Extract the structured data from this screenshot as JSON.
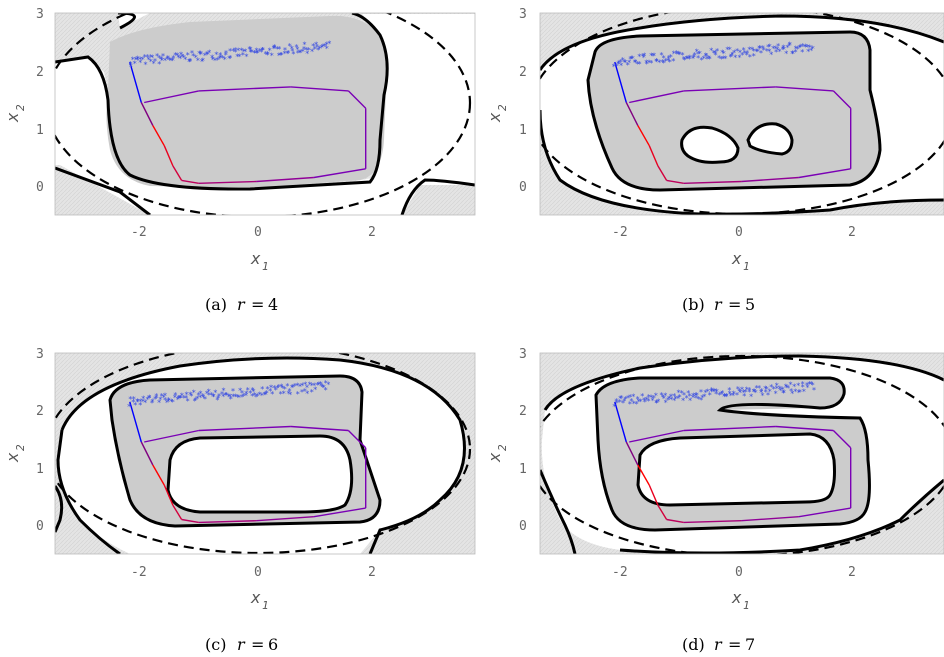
{
  "chart_data": [
    {
      "type": "contour",
      "caption_label": "(a)",
      "caption_var": "r",
      "caption_value": "4",
      "xlabel": "x",
      "xlabel_sub": "1",
      "ylabel": "x",
      "ylabel_sub": "2",
      "xlim": [
        -3.5,
        3.8
      ],
      "ylim": [
        -0.5,
        3
      ],
      "x_ticks": [
        "-2",
        "0",
        "2"
      ],
      "y_ticks": [
        "0",
        "1",
        "2",
        "3"
      ],
      "inner_curves": [],
      "inner_kind": "none"
    },
    {
      "type": "contour",
      "caption_label": "(b)",
      "caption_var": "r",
      "caption_value": "5",
      "xlabel": "x",
      "xlabel_sub": "1",
      "ylabel": "x",
      "ylabel_sub": "2",
      "xlim": [
        -3.5,
        3.8
      ],
      "ylim": [
        -0.5,
        3
      ],
      "x_ticks": [
        "-2",
        "0",
        "2"
      ],
      "y_ticks": [
        "0",
        "1",
        "2",
        "3"
      ],
      "inner_kind": "two-lobes"
    },
    {
      "type": "contour",
      "caption_label": "(c)",
      "caption_var": "r",
      "caption_value": "6",
      "xlabel": "x",
      "xlabel_sub": "1",
      "ylabel": "x",
      "ylabel_sub": "2",
      "xlim": [
        -3.5,
        3.8
      ],
      "ylim": [
        -0.5,
        3
      ],
      "x_ticks": [
        "-2",
        "0",
        "2"
      ],
      "y_ticks": [
        "0",
        "1",
        "2",
        "3"
      ],
      "inner_kind": "hole"
    },
    {
      "type": "contour",
      "caption_label": "(d)",
      "caption_var": "r",
      "caption_value": "7",
      "xlabel": "x",
      "xlabel_sub": "1",
      "ylabel": "x",
      "ylabel_sub": "2",
      "xlim": [
        -3.5,
        3.8
      ],
      "ylim": [
        -0.5,
        3
      ],
      "x_ticks": [
        "-2",
        "0",
        "2"
      ],
      "y_ticks": [
        "0",
        "1",
        "2",
        "3"
      ],
      "inner_kind": "hole"
    }
  ],
  "trajectory": {
    "scatter_band": {
      "x_from": -2.2,
      "x_to": 1.25,
      "y_from": 2.15,
      "y_to": 2.4
    },
    "path": [
      [
        -2.2,
        2.15
      ],
      [
        -2.0,
        1.45
      ],
      [
        -1.8,
        1.05
      ],
      [
        -1.6,
        0.7
      ],
      [
        -1.45,
        0.35
      ],
      [
        -1.3,
        0.1
      ],
      [
        -1.0,
        0.05
      ],
      [
        0.0,
        0.08
      ],
      [
        1.0,
        0.15
      ],
      [
        1.9,
        0.3
      ],
      [
        1.9,
        1.35
      ],
      [
        1.6,
        1.65
      ],
      [
        0.6,
        1.72
      ],
      [
        -1.0,
        1.65
      ],
      [
        -1.95,
        1.45
      ]
    ],
    "colors": {
      "start": "#0000ff",
      "mid": "#ff0000",
      "end": "#7a00b5"
    }
  },
  "colors": {
    "feasible_fill": "#cccccc",
    "background_fill": "#e4e4e4",
    "boundary": "#000000",
    "scatter": "#3b4fe0"
  }
}
